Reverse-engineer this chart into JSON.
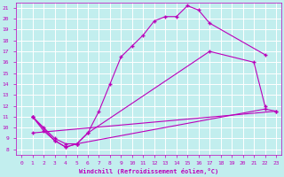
{
  "xlabel": "Windchill (Refroidissement éolien,°C)",
  "xlim": [
    -0.5,
    23.5
  ],
  "ylim": [
    7.5,
    21.5
  ],
  "yticks": [
    8,
    9,
    10,
    11,
    12,
    13,
    14,
    15,
    16,
    17,
    18,
    19,
    20,
    21
  ],
  "xticks": [
    0,
    1,
    2,
    3,
    4,
    5,
    6,
    7,
    8,
    9,
    10,
    11,
    12,
    13,
    14,
    15,
    16,
    17,
    18,
    19,
    20,
    21,
    22,
    23
  ],
  "bg_color": "#c2eeee",
  "grid_color": "#ffffff",
  "line_color": "#bb00bb",
  "line1_x": [
    1,
    2,
    3,
    4,
    5,
    6,
    7,
    8,
    9,
    10,
    11,
    12,
    13,
    14,
    15,
    16,
    17,
    22
  ],
  "line1_y": [
    11.0,
    9.7,
    8.8,
    8.2,
    8.5,
    9.5,
    11.5,
    14.0,
    16.5,
    17.5,
    18.5,
    19.8,
    20.2,
    20.2,
    21.2,
    20.8,
    19.6,
    16.7
  ],
  "line2_x": [
    1,
    2,
    3,
    4,
    5,
    6,
    17,
    21,
    22
  ],
  "line2_y": [
    11.0,
    10.0,
    9.0,
    8.5,
    8.5,
    9.5,
    17.0,
    16.0,
    12.0
  ],
  "line3_x": [
    1,
    3,
    4,
    5,
    22,
    23
  ],
  "line3_y": [
    11.0,
    8.8,
    8.2,
    8.5,
    11.7,
    11.5
  ],
  "line4_x": [
    1,
    23
  ],
  "line4_y": [
    9.5,
    11.5
  ],
  "marker": "+",
  "markersize": 3,
  "linewidth": 0.8,
  "tick_fontsize": 4.5,
  "xlabel_fontsize": 5.0
}
